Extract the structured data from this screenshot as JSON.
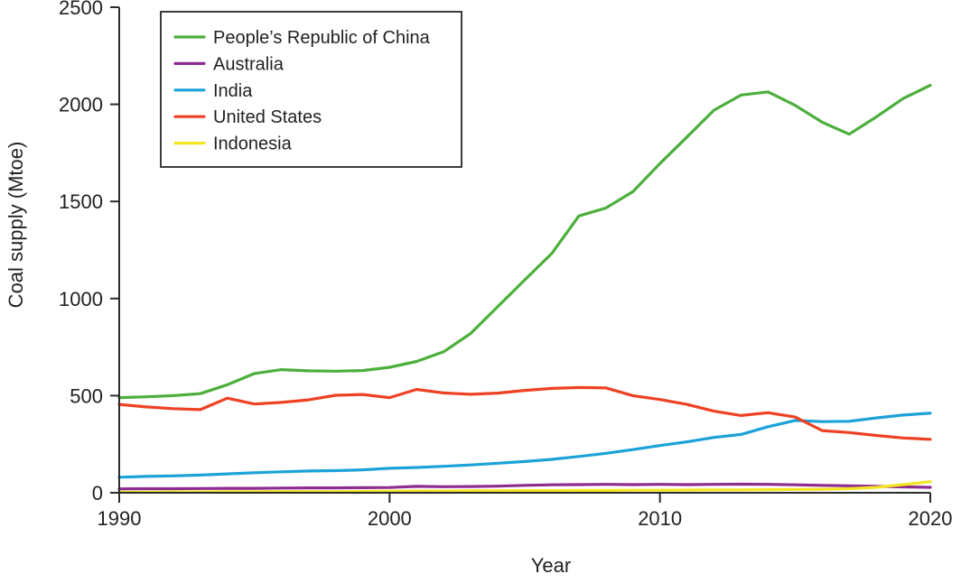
{
  "chart_data": {
    "type": "line",
    "title": "",
    "xlabel": "Year",
    "ylabel": "Coal supply (Mtoe)",
    "xlim": [
      1990,
      2020
    ],
    "ylim": [
      0,
      2500
    ],
    "xticks": [
      1990,
      2000,
      2010,
      2020
    ],
    "yticks": [
      0,
      500,
      1000,
      1500,
      2000,
      2500
    ],
    "grid": false,
    "legend_position": "upper-left-inside",
    "background_color": "#ffffff",
    "axis_color": "#2b2b2b",
    "x": [
      1990,
      1991,
      1992,
      1993,
      1994,
      1995,
      1996,
      1997,
      1998,
      1999,
      2000,
      2001,
      2002,
      2003,
      2004,
      2005,
      2006,
      2007,
      2008,
      2009,
      2010,
      2011,
      2012,
      2013,
      2014,
      2015,
      2016,
      2017,
      2018,
      2019,
      2020
    ],
    "series": [
      {
        "name": "People’s Republic of China",
        "color": "#4caf3c",
        "values": [
          490,
          494,
          500,
          510,
          556,
          614,
          634,
          628,
          626,
          629,
          646,
          676,
          726,
          820,
          958,
          1096,
          1232,
          1425,
          1466,
          1550,
          1695,
          1832,
          1970,
          2048,
          2064,
          1995,
          1908,
          1846,
          1935,
          2030,
          2098
        ]
      },
      {
        "name": "Australia",
        "color": "#8e2c90",
        "values": [
          20,
          21,
          21,
          22,
          23,
          23,
          24,
          25,
          25,
          26,
          27,
          33,
          31,
          32,
          34,
          38,
          41,
          42,
          43,
          42,
          43,
          42,
          43,
          44,
          43,
          41,
          38,
          36,
          33,
          30,
          28
        ]
      },
      {
        "name": "India",
        "color": "#1ba2d8",
        "values": [
          80,
          84,
          87,
          91,
          97,
          103,
          108,
          112,
          114,
          118,
          126,
          130,
          136,
          143,
          152,
          161,
          172,
          187,
          203,
          222,
          243,
          262,
          285,
          300,
          340,
          372,
          366,
          368,
          385,
          400,
          410
        ]
      },
      {
        "name": "United States",
        "color": "#ee4123",
        "values": [
          455,
          442,
          433,
          428,
          487,
          457,
          465,
          478,
          502,
          506,
          490,
          532,
          514,
          507,
          513,
          527,
          537,
          542,
          540,
          500,
          480,
          455,
          420,
          398,
          412,
          390,
          320,
          310,
          295,
          282,
          275
        ]
      },
      {
        "name": "Indonesia",
        "color": "#f3e521",
        "values": [
          3,
          3,
          4,
          4,
          5,
          5,
          6,
          6,
          5,
          7,
          8,
          9,
          9,
          10,
          10,
          11,
          11,
          12,
          12,
          13,
          13,
          14,
          15,
          15,
          16,
          17,
          18,
          21,
          28,
          42,
          57
        ]
      }
    ]
  }
}
